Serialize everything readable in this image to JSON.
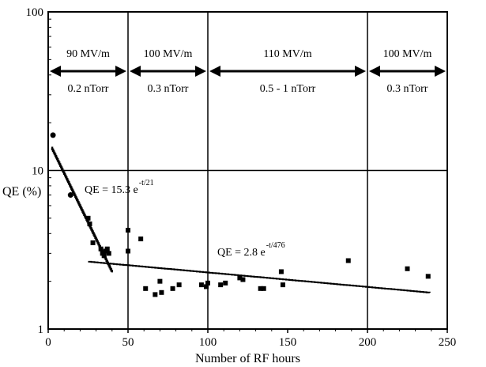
{
  "chart_data": {
    "type": "scatter",
    "xlabel": "Number of RF hours",
    "ylabel": "QE (%)",
    "xlim": [
      0,
      250
    ],
    "ylim": [
      1,
      100
    ],
    "yscale": "log",
    "grid": true,
    "x_ticks": [
      {
        "value": 0,
        "label": "0"
      },
      {
        "value": 50,
        "label": "50"
      },
      {
        "value": 100,
        "label": "100"
      },
      {
        "value": 150,
        "label": "150"
      },
      {
        "value": 200,
        "label": "200"
      },
      {
        "value": 250,
        "label": "250"
      }
    ],
    "y_ticks": [
      {
        "value": 1,
        "label": "1"
      },
      {
        "value": 10,
        "label": "10"
      },
      {
        "value": 100,
        "label": "100"
      }
    ],
    "region_boundaries": [
      50,
      100,
      200
    ],
    "regions": [
      {
        "x_start": 0,
        "x_end": 50,
        "field": "90 MV/m",
        "pressure": "0.2 nTorr"
      },
      {
        "x_start": 50,
        "x_end": 100,
        "field": "100 MV/m",
        "pressure": "0.3 nTorr"
      },
      {
        "x_start": 100,
        "x_end": 200,
        "field": "110 MV/m",
        "pressure": "0.5 - 1 nTorr"
      },
      {
        "x_start": 200,
        "x_end": 250,
        "field": "100 MV/m",
        "pressure": "0.3 nTorr"
      }
    ],
    "fits": [
      {
        "label": "QE = 15.3 e",
        "exponent": "-t/21",
        "a": 15.3,
        "tau": 21,
        "x_range": [
          2,
          40
        ]
      },
      {
        "label": "QE = 2.8 e",
        "exponent": "-t/476",
        "a": 2.8,
        "tau": 476,
        "x_range": [
          25,
          240
        ]
      }
    ],
    "series": [
      {
        "marker": "circle",
        "points": [
          {
            "x": 3,
            "y": 16.7
          },
          {
            "x": 14,
            "y": 7.0
          }
        ]
      },
      {
        "marker": "square",
        "points": [
          {
            "x": 25,
            "y": 5.0
          },
          {
            "x": 26,
            "y": 4.6
          },
          {
            "x": 28,
            "y": 3.5
          },
          {
            "x": 33,
            "y": 3.2
          },
          {
            "x": 34,
            "y": 3.0
          },
          {
            "x": 35,
            "y": 2.9
          },
          {
            "x": 36,
            "y": 3.1
          },
          {
            "x": 37,
            "y": 3.2
          },
          {
            "x": 38,
            "y": 3.0
          },
          {
            "x": 50,
            "y": 4.2
          },
          {
            "x": 50,
            "y": 3.1
          },
          {
            "x": 58,
            "y": 3.7
          },
          {
            "x": 61,
            "y": 1.8
          },
          {
            "x": 67,
            "y": 1.65
          },
          {
            "x": 70,
            "y": 2.0
          },
          {
            "x": 71,
            "y": 1.7
          },
          {
            "x": 78,
            "y": 1.8
          },
          {
            "x": 82,
            "y": 1.9
          },
          {
            "x": 96,
            "y": 1.9
          },
          {
            "x": 99,
            "y": 1.85
          },
          {
            "x": 100,
            "y": 1.95
          },
          {
            "x": 108,
            "y": 1.9
          },
          {
            "x": 111,
            "y": 1.95
          },
          {
            "x": 120,
            "y": 2.1
          },
          {
            "x": 122,
            "y": 2.05
          },
          {
            "x": 133,
            "y": 1.8
          },
          {
            "x": 135,
            "y": 1.8
          },
          {
            "x": 146,
            "y": 2.3
          },
          {
            "x": 147,
            "y": 1.9
          },
          {
            "x": 188,
            "y": 2.7
          },
          {
            "x": 225,
            "y": 2.4
          },
          {
            "x": 238,
            "y": 2.15
          }
        ]
      }
    ]
  }
}
